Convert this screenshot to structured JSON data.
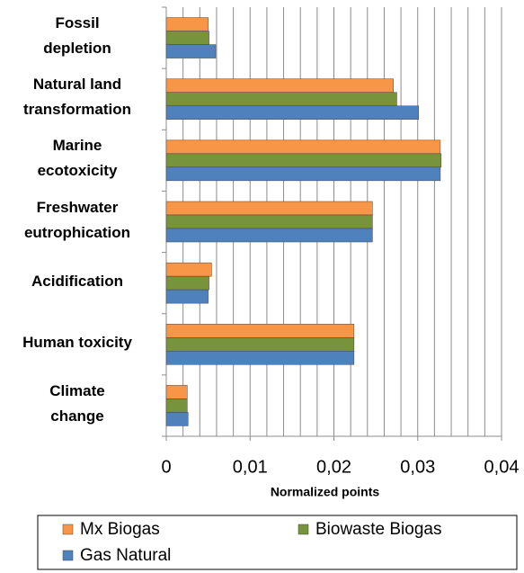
{
  "chart_data": {
    "type": "hbar",
    "categories": [
      "Fossil\ndepletion",
      "Natural land\ntransformation",
      "Marine\necotoxicity",
      "Freshwater\neutrophication",
      "Acidification",
      "Human toxicity",
      "Climate\nchange"
    ],
    "series": [
      {
        "name": "Mx Biogas",
        "color": "#f79646",
        "values": [
          0.005,
          0.0271,
          0.0327,
          0.0246,
          0.0054,
          0.0224,
          0.0025
        ]
      },
      {
        "name": "Biowaste Biogas",
        "color": "#77933c",
        "values": [
          0.0051,
          0.0275,
          0.0328,
          0.0246,
          0.0051,
          0.0224,
          0.0025
        ]
      },
      {
        "name": "Gas Natural",
        "color": "#4f81bd",
        "values": [
          0.0059,
          0.0301,
          0.0327,
          0.0246,
          0.005,
          0.0224,
          0.0026
        ]
      }
    ],
    "xlabel": "Normalized points",
    "xlim": [
      0,
      0.04
    ],
    "xticks": [
      0,
      {
        "value": 0.01,
        "label": "0,01"
      },
      {
        "value": 0.02,
        "label": "0,02"
      },
      {
        "value": 0.03,
        "label": "0,03"
      },
      {
        "value": 0.04,
        "label": "0,04"
      }
    ],
    "xminorticks": [
      0.002,
      0.004,
      0.006,
      0.008,
      0.01,
      0.012,
      0.014,
      0.016,
      0.018,
      0.02,
      0.022,
      0.024,
      0.026,
      0.028,
      0.03,
      0.032,
      0.034,
      0.036,
      0.038,
      0.04
    ],
    "grid": true,
    "legend": "bottom"
  }
}
